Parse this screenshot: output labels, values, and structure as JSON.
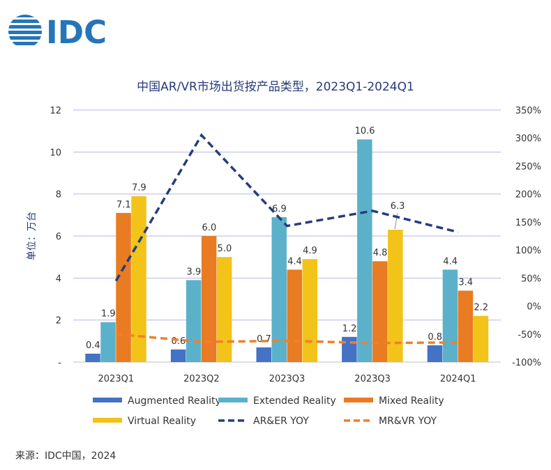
{
  "logo_text": "IDC",
  "source": "来源：IDC中国，2024",
  "chart_data": {
    "type": "bar",
    "title": "中国AR/VR市场出货按产品类型，2023Q1-2024Q1",
    "ylabel": "单位：万台",
    "categories": [
      "2023Q1",
      "2023Q2",
      "2023Q3",
      "2023Q3",
      "2024Q1"
    ],
    "ylim": [
      0,
      12
    ],
    "y_ticks": [
      "-",
      "2",
      "4",
      "6",
      "8",
      "10",
      "12"
    ],
    "y2lim": [
      -100,
      350
    ],
    "y2_ticks": [
      "-100%",
      "-50%",
      "0%",
      "50%",
      "100%",
      "150%",
      "200%",
      "250%",
      "300%",
      "350%"
    ],
    "grid": true,
    "legend": "bottom",
    "series": [
      {
        "name": "Augmented Reality",
        "color": "#4472c4",
        "values": [
          0.4,
          0.6,
          0.7,
          1.2,
          0.8
        ],
        "labels": [
          "0.4",
          "0.6",
          "0.7",
          "1.2",
          "0.8"
        ]
      },
      {
        "name": "Extended Reality",
        "color": "#5bb1c9",
        "values": [
          1.9,
          3.9,
          6.9,
          10.6,
          4.4
        ],
        "labels": [
          "1.9",
          "3.9",
          "6.9",
          "10.6",
          "4.4"
        ]
      },
      {
        "name": "Mixed Reality",
        "color": "#e97b22",
        "values": [
          7.1,
          6.0,
          4.4,
          4.8,
          3.4
        ],
        "labels": [
          "7.1",
          "6.0",
          "4.4",
          "4.8",
          "3.4"
        ]
      },
      {
        "name": "Virtual Reality",
        "color": "#f2c318",
        "values": [
          7.9,
          5.0,
          4.9,
          6.3,
          2.2
        ],
        "labels": [
          "7.9",
          "5.0",
          "4.9",
          "6.3",
          "2.2"
        ]
      }
    ],
    "lines": [
      {
        "name": "AR&ER YOY",
        "color": "#243e7c",
        "values": [
          45,
          305,
          143,
          170,
          132
        ]
      },
      {
        "name": "MR&VR YOY",
        "color": "#f07f2b",
        "values": [
          -50,
          -64,
          -62,
          -66,
          -65
        ]
      }
    ]
  }
}
